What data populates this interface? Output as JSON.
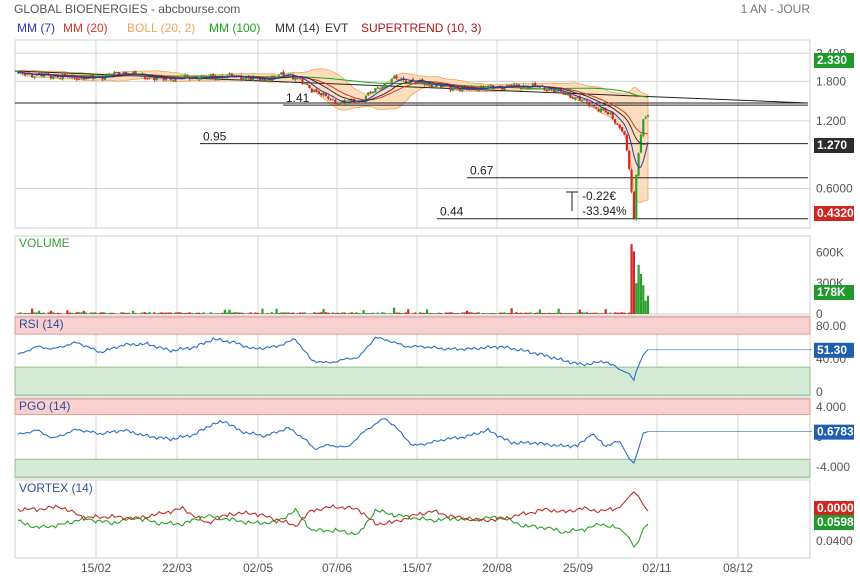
{
  "header": {
    "title": "GLOBAL BIOENERGIES - abcbourse.com",
    "period": "1 AN - JOUR"
  },
  "legend": [
    {
      "label": "MM (7)",
      "color": "#2b35c4"
    },
    {
      "label": "MM (20)",
      "color": "#d9342b"
    },
    {
      "label": "BOLL (20, 2)",
      "color": "#f0a45a"
    },
    {
      "label": "MM (100)",
      "color": "#1aa51a"
    },
    {
      "label": "MM (14)",
      "color": "#333333"
    },
    {
      "label": "EVT",
      "color": "#333333"
    },
    {
      "label": "SUPERTREND (10, 3)",
      "color": "#b01818"
    }
  ],
  "colors": {
    "grid": "#d4d4d4",
    "candle_up": "#2ca02c",
    "candle_down": "#d62728",
    "boll_fill": "#fbd8b3",
    "rsi_line": "#2e6fc4",
    "overbought_fill": "#f8d0d0",
    "oversold_fill": "#d4ead4",
    "vortex_plus": "#2ca02c",
    "vortex_minus": "#c0302a",
    "badge_green": "#1f9a2b",
    "badge_blue": "#1e5fb0",
    "badge_red": "#d3251f",
    "badge_dark": "#2c2c2c"
  },
  "x_axis": {
    "ticks": [
      "15/02",
      "22/03",
      "02/05",
      "07/06",
      "15/07",
      "20/08",
      "25/09",
      "02/11",
      "08/12"
    ]
  },
  "chart_data": [
    {
      "type": "candlestick",
      "panel": "price",
      "y_scale": "log",
      "y_ticks": [
        "2.400",
        "1.800",
        "1.200",
        "0.6000"
      ],
      "last_value_badges": [
        {
          "text": "2.330",
          "kind": "green"
        },
        {
          "text": "1.270",
          "kind": "dark"
        },
        {
          "text": "0.4320",
          "kind": "red"
        }
      ],
      "level_lines": [
        {
          "label": "1.41",
          "value": 1.41
        },
        {
          "label": "0.95",
          "value": 0.95
        },
        {
          "label": "0.67",
          "value": 0.67
        },
        {
          "label": "0.44",
          "value": 0.44
        }
      ],
      "annotations": [
        "-0.22€",
        "-33.94%"
      ],
      "close_anchors": [
        [
          0,
          1.95
        ],
        [
          15,
          1.9
        ],
        [
          30,
          1.86
        ],
        [
          45,
          1.96
        ],
        [
          60,
          1.85
        ],
        [
          75,
          1.87
        ],
        [
          90,
          1.9
        ],
        [
          105,
          1.83
        ],
        [
          115,
          1.95
        ],
        [
          125,
          1.66
        ],
        [
          135,
          1.45
        ],
        [
          145,
          1.47
        ],
        [
          160,
          1.85
        ],
        [
          175,
          1.74
        ],
        [
          190,
          1.66
        ],
        [
          205,
          1.71
        ],
        [
          220,
          1.71
        ],
        [
          230,
          1.62
        ],
        [
          240,
          1.48
        ],
        [
          252,
          1.27
        ],
        [
          258,
          1.04
        ],
        [
          261,
          0.58
        ],
        [
          262,
          0.44
        ],
        [
          263,
          0.69
        ],
        [
          264,
          0.86
        ],
        [
          266,
          1.22
        ],
        [
          268,
          1.27
        ]
      ]
    },
    {
      "type": "bar",
      "panel": "volume",
      "title": "VOLUME",
      "y_ticks": [
        "600K",
        "300K",
        "0"
      ],
      "last_value_badge": {
        "text": "178K",
        "kind": "green"
      },
      "spikes": [
        [
          261,
          680
        ],
        [
          262,
          610
        ],
        [
          263,
          300
        ],
        [
          264,
          480
        ],
        [
          265,
          390
        ],
        [
          266,
          280
        ],
        [
          267,
          130
        ],
        [
          268,
          178
        ]
      ]
    },
    {
      "type": "line",
      "panel": "rsi",
      "title": "RSI (14)",
      "y_ticks": [
        "80.00",
        "40.00",
        "0"
      ],
      "zones": {
        "overbought": 70,
        "oversold": 30
      },
      "last_value_badge": {
        "text": "51.30",
        "kind": "blue"
      },
      "anchors": [
        [
          0,
          45
        ],
        [
          8,
          55
        ],
        [
          15,
          52
        ],
        [
          25,
          60
        ],
        [
          35,
          48
        ],
        [
          45,
          57
        ],
        [
          55,
          58
        ],
        [
          65,
          50
        ],
        [
          75,
          54
        ],
        [
          83,
          64
        ],
        [
          92,
          60
        ],
        [
          100,
          52
        ],
        [
          110,
          55
        ],
        [
          118,
          64
        ],
        [
          125,
          38
        ],
        [
          132,
          35
        ],
        [
          140,
          40
        ],
        [
          145,
          42
        ],
        [
          152,
          66
        ],
        [
          158,
          62
        ],
        [
          165,
          55
        ],
        [
          172,
          55
        ],
        [
          182,
          52
        ],
        [
          192,
          52
        ],
        [
          205,
          55
        ],
        [
          215,
          50
        ],
        [
          223,
          45
        ],
        [
          232,
          38
        ],
        [
          240,
          33
        ],
        [
          250,
          37
        ],
        [
          256,
          27
        ],
        [
          260,
          22
        ],
        [
          262,
          14
        ],
        [
          263,
          25
        ],
        [
          266,
          45
        ],
        [
          268,
          51
        ]
      ]
    },
    {
      "type": "line",
      "panel": "pgo",
      "title": "PGO (14)",
      "y_ticks": [
        "4.000",
        "0",
        "-4.000"
      ],
      "zones": {
        "overbought": 3,
        "oversold": -3
      },
      "last_value_badge": {
        "text": "0.6783",
        "kind": "blue"
      },
      "anchors": [
        [
          0,
          0.3
        ],
        [
          8,
          0.9
        ],
        [
          15,
          -0.2
        ],
        [
          25,
          1.0
        ],
        [
          35,
          0.4
        ],
        [
          45,
          0.9
        ],
        [
          55,
          0.1
        ],
        [
          65,
          -0.3
        ],
        [
          75,
          0.3
        ],
        [
          82,
          1.6
        ],
        [
          88,
          2.1
        ],
        [
          95,
          0.7
        ],
        [
          105,
          0.1
        ],
        [
          115,
          1.2
        ],
        [
          122,
          -0.3
        ],
        [
          126,
          -1.6
        ],
        [
          132,
          -1.1
        ],
        [
          140,
          -1.4
        ],
        [
          148,
          0.9
        ],
        [
          156,
          2.5
        ],
        [
          160,
          1.5
        ],
        [
          168,
          -1.2
        ],
        [
          175,
          -0.8
        ],
        [
          182,
          -0.3
        ],
        [
          190,
          0.0
        ],
        [
          200,
          0.9
        ],
        [
          210,
          -0.8
        ],
        [
          220,
          -0.8
        ],
        [
          230,
          -1.2
        ],
        [
          238,
          -1.2
        ],
        [
          244,
          0.4
        ],
        [
          250,
          -1.2
        ],
        [
          256,
          -0.6
        ],
        [
          260,
          -2.9
        ],
        [
          262,
          -3.5
        ],
        [
          264,
          -1.6
        ],
        [
          266,
          0.5
        ],
        [
          268,
          0.7
        ]
      ]
    },
    {
      "type": "line",
      "panel": "vortex",
      "title": "VORTEX (14)",
      "y_ticks": [
        "0.0000",
        "0.0400"
      ],
      "last_value_badges": [
        {
          "text": "0.0598",
          "kind": "green"
        },
        {
          "text": "0.0000",
          "kind": "red"
        }
      ],
      "series": [
        {
          "name": "VI+",
          "anchors": [
            [
              0,
              1.0
            ],
            [
              8,
              0.93
            ],
            [
              18,
              0.96
            ],
            [
              28,
              1.03
            ],
            [
              40,
              0.98
            ],
            [
              50,
              1.04
            ],
            [
              60,
              0.98
            ],
            [
              70,
              0.97
            ],
            [
              80,
              1.06
            ],
            [
              90,
              1.02
            ],
            [
              100,
              0.98
            ],
            [
              110,
              0.99
            ],
            [
              118,
              1.12
            ],
            [
              125,
              0.9
            ],
            [
              135,
              0.9
            ],
            [
              145,
              0.86
            ],
            [
              152,
              1.12
            ],
            [
              160,
              1.07
            ],
            [
              168,
              1.04
            ],
            [
              176,
              1.01
            ],
            [
              185,
              1.03
            ],
            [
              195,
              1.02
            ],
            [
              205,
              1.05
            ],
            [
              215,
              0.95
            ],
            [
              225,
              0.93
            ],
            [
              232,
              0.88
            ],
            [
              240,
              0.91
            ],
            [
              248,
              0.97
            ],
            [
              256,
              0.92
            ],
            [
              260,
              0.82
            ],
            [
              262,
              0.72
            ],
            [
              264,
              0.78
            ],
            [
              266,
              0.92
            ],
            [
              268,
              0.97
            ]
          ]
        },
        {
          "name": "VI-",
          "anchors": [
            [
              0,
              1.13
            ],
            [
              8,
              1.13
            ],
            [
              18,
              1.16
            ],
            [
              28,
              1.04
            ],
            [
              40,
              1.05
            ],
            [
              50,
              1.03
            ],
            [
              60,
              1.08
            ],
            [
              70,
              1.14
            ],
            [
              80,
              0.98
            ],
            [
              90,
              1.08
            ],
            [
              100,
              1.09
            ],
            [
              110,
              1.02
            ],
            [
              118,
              0.95
            ],
            [
              125,
              1.12
            ],
            [
              135,
              1.16
            ],
            [
              145,
              1.13
            ],
            [
              152,
              0.97
            ],
            [
              160,
              0.99
            ],
            [
              168,
              1.06
            ],
            [
              176,
              1.11
            ],
            [
              185,
              1.05
            ],
            [
              195,
              1.01
            ],
            [
              205,
              1.02
            ],
            [
              215,
              1.08
            ],
            [
              225,
              1.13
            ],
            [
              232,
              1.1
            ],
            [
              240,
              1.14
            ],
            [
              248,
              1.11
            ],
            [
              256,
              1.15
            ],
            [
              260,
              1.27
            ],
            [
              262,
              1.32
            ],
            [
              264,
              1.27
            ],
            [
              266,
              1.18
            ],
            [
              268,
              1.11
            ]
          ]
        }
      ]
    }
  ]
}
